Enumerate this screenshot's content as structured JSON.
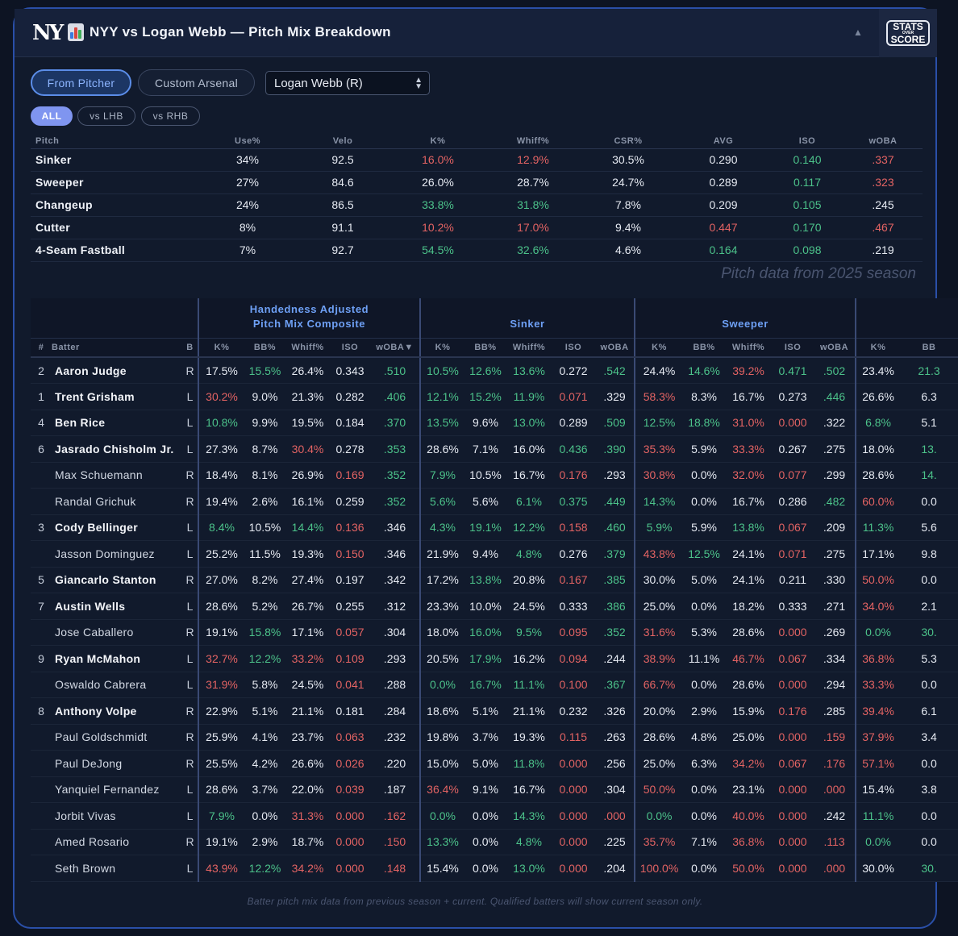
{
  "header": {
    "title": "NYY vs Logan Webb — Pitch Mix Breakdown",
    "team_logo_text": "NY",
    "brand": {
      "line1": "STATS",
      "line2": "OVER",
      "line3": "SCORE"
    },
    "collapse_icon": "chevron-up-icon"
  },
  "controls": {
    "from_pitcher": "From Pitcher",
    "custom_arsenal": "Custom Arsenal",
    "pitcher_select": "Logan Webb (R)",
    "filters": {
      "all": "ALL",
      "lhb": "vs LHB",
      "rhb": "vs RHB"
    }
  },
  "colors": {
    "accent": "#5b8de8",
    "good": "#4cc28a",
    "bad": "#e36363",
    "group_header": "#6ea0f5"
  },
  "pitch_table": {
    "columns": [
      "Pitch",
      "Use%",
      "Velo",
      "K%",
      "Whiff%",
      "CSR%",
      "AVG",
      "ISO",
      "wOBA"
    ],
    "rows": [
      {
        "cells": [
          "Sinker",
          "34%",
          "92.5",
          "16.0%",
          "12.9%",
          "30.5%",
          "0.290",
          "0.140",
          ".337"
        ],
        "tone": [
          "",
          "",
          "",
          "r",
          "r",
          "",
          "",
          "g",
          "r"
        ]
      },
      {
        "cells": [
          "Sweeper",
          "27%",
          "84.6",
          "26.0%",
          "28.7%",
          "24.7%",
          "0.289",
          "0.117",
          ".323"
        ],
        "tone": [
          "",
          "",
          "",
          "",
          "",
          "",
          "",
          "g",
          "r"
        ]
      },
      {
        "cells": [
          "Changeup",
          "24%",
          "86.5",
          "33.8%",
          "31.8%",
          "7.8%",
          "0.209",
          "0.105",
          ".245"
        ],
        "tone": [
          "",
          "",
          "",
          "g",
          "g",
          "",
          "",
          "g",
          ""
        ]
      },
      {
        "cells": [
          "Cutter",
          "8%",
          "91.1",
          "10.2%",
          "17.0%",
          "9.4%",
          "0.447",
          "0.170",
          ".467"
        ],
        "tone": [
          "",
          "",
          "",
          "r",
          "r",
          "",
          "r",
          "g",
          "r"
        ]
      },
      {
        "cells": [
          "4-Seam Fastball",
          "7%",
          "92.7",
          "54.5%",
          "32.6%",
          "4.6%",
          "0.164",
          "0.098",
          ".219"
        ],
        "tone": [
          "",
          "",
          "",
          "g",
          "g",
          "",
          "g",
          "g",
          ""
        ]
      }
    ],
    "note": "Pitch data from 2025 season"
  },
  "batter_table": {
    "groups": [
      {
        "label_line1": "Handedness Adjusted",
        "label_line2": "Pitch Mix Composite"
      },
      {
        "label_line1": "",
        "label_line2": "Sinker"
      },
      {
        "label_line1": "",
        "label_line2": "Sweeper"
      },
      {
        "label_line1": "",
        "label_line2": ""
      }
    ],
    "columns": [
      "#",
      "Batter",
      "B",
      "K%",
      "BB%",
      "Whiff%",
      "ISO",
      "wOBA▼",
      "K%",
      "BB%",
      "Whiff%",
      "ISO",
      "wOBA",
      "K%",
      "BB%",
      "Whiff%",
      "ISO",
      "wOBA",
      "K%",
      "BB"
    ],
    "rows": [
      {
        "order": "2",
        "name": "Aaron Judge",
        "bold": true,
        "hand": "R",
        "vals": [
          "17.5%",
          "15.5%",
          "26.4%",
          "0.343",
          ".510",
          "10.5%",
          "12.6%",
          "13.6%",
          "0.272",
          ".542",
          "24.4%",
          "14.6%",
          "39.2%",
          "0.471",
          ".502",
          "23.4%",
          "21.3"
        ],
        "tone": [
          "",
          "g",
          "",
          "",
          "g",
          "g",
          "g",
          "g",
          "",
          "g",
          "",
          "g",
          "r",
          "g",
          "g",
          "",
          "g"
        ]
      },
      {
        "order": "1",
        "name": "Trent Grisham",
        "bold": true,
        "hand": "L",
        "vals": [
          "30.2%",
          "9.0%",
          "21.3%",
          "0.282",
          ".406",
          "12.1%",
          "15.2%",
          "11.9%",
          "0.071",
          ".329",
          "58.3%",
          "8.3%",
          "16.7%",
          "0.273",
          ".446",
          "26.6%",
          "6.3"
        ],
        "tone": [
          "r",
          "",
          "",
          "",
          "g",
          "g",
          "g",
          "g",
          "r",
          "",
          "r",
          "",
          "",
          "",
          "g",
          "",
          ""
        ]
      },
      {
        "order": "4",
        "name": "Ben Rice",
        "bold": true,
        "hand": "L",
        "vals": [
          "10.8%",
          "9.9%",
          "19.5%",
          "0.184",
          ".370",
          "13.5%",
          "9.6%",
          "13.0%",
          "0.289",
          ".509",
          "12.5%",
          "18.8%",
          "31.0%",
          "0.000",
          ".322",
          "6.8%",
          "5.1"
        ],
        "tone": [
          "g",
          "",
          "",
          "",
          "g",
          "g",
          "",
          "g",
          "",
          "g",
          "g",
          "g",
          "r",
          "r",
          "",
          "g",
          ""
        ]
      },
      {
        "order": "6",
        "name": "Jasrado Chisholm Jr.",
        "bold": true,
        "hand": "L",
        "vals": [
          "27.3%",
          "8.7%",
          "30.4%",
          "0.278",
          ".353",
          "28.6%",
          "7.1%",
          "16.0%",
          "0.436",
          ".390",
          "35.3%",
          "5.9%",
          "33.3%",
          "0.267",
          ".275",
          "18.0%",
          "13."
        ],
        "tone": [
          "",
          "",
          "r",
          "",
          "g",
          "",
          "",
          "",
          "g",
          "g",
          "r",
          "",
          "r",
          "",
          "",
          "",
          "g"
        ]
      },
      {
        "order": "",
        "name": "Max Schuemann",
        "bold": false,
        "hand": "R",
        "vals": [
          "18.4%",
          "8.1%",
          "26.9%",
          "0.169",
          ".352",
          "7.9%",
          "10.5%",
          "16.7%",
          "0.176",
          ".293",
          "30.8%",
          "0.0%",
          "32.0%",
          "0.077",
          ".299",
          "28.6%",
          "14."
        ],
        "tone": [
          "",
          "",
          "",
          "r",
          "g",
          "g",
          "",
          "",
          "r",
          "",
          "r",
          "",
          "r",
          "r",
          "",
          "",
          "g"
        ]
      },
      {
        "order": "",
        "name": "Randal Grichuk",
        "bold": false,
        "hand": "R",
        "vals": [
          "19.4%",
          "2.6%",
          "16.1%",
          "0.259",
          ".352",
          "5.6%",
          "5.6%",
          "6.1%",
          "0.375",
          ".449",
          "14.3%",
          "0.0%",
          "16.7%",
          "0.286",
          ".482",
          "60.0%",
          "0.0"
        ],
        "tone": [
          "",
          "",
          "",
          "",
          "g",
          "g",
          "",
          "g",
          "g",
          "g",
          "g",
          "",
          "",
          "",
          "g",
          "r",
          ""
        ]
      },
      {
        "order": "3",
        "name": "Cody Bellinger",
        "bold": true,
        "hand": "L",
        "vals": [
          "8.4%",
          "10.5%",
          "14.4%",
          "0.136",
          ".346",
          "4.3%",
          "19.1%",
          "12.2%",
          "0.158",
          ".460",
          "5.9%",
          "5.9%",
          "13.8%",
          "0.067",
          ".209",
          "11.3%",
          "5.6"
        ],
        "tone": [
          "g",
          "",
          "g",
          "r",
          "",
          "g",
          "g",
          "g",
          "r",
          "g",
          "g",
          "",
          "g",
          "r",
          "",
          "g",
          ""
        ]
      },
      {
        "order": "",
        "name": "Jasson Dominguez",
        "bold": false,
        "hand": "L",
        "vals": [
          "25.2%",
          "11.5%",
          "19.3%",
          "0.150",
          ".346",
          "21.9%",
          "9.4%",
          "4.8%",
          "0.276",
          ".379",
          "43.8%",
          "12.5%",
          "24.1%",
          "0.071",
          ".275",
          "17.1%",
          "9.8"
        ],
        "tone": [
          "",
          "",
          "",
          "r",
          "",
          "",
          "",
          "g",
          "",
          "g",
          "r",
          "g",
          "",
          "r",
          "",
          "",
          ""
        ]
      },
      {
        "order": "5",
        "name": "Giancarlo Stanton",
        "bold": true,
        "hand": "R",
        "vals": [
          "27.0%",
          "8.2%",
          "27.4%",
          "0.197",
          ".342",
          "17.2%",
          "13.8%",
          "20.8%",
          "0.167",
          ".385",
          "30.0%",
          "5.0%",
          "24.1%",
          "0.211",
          ".330",
          "50.0%",
          "0.0"
        ],
        "tone": [
          "",
          "",
          "",
          "",
          "",
          "",
          "g",
          "",
          "r",
          "g",
          "",
          "",
          "",
          "",
          "",
          "r",
          ""
        ]
      },
      {
        "order": "7",
        "name": "Austin Wells",
        "bold": true,
        "hand": "L",
        "vals": [
          "28.6%",
          "5.2%",
          "26.7%",
          "0.255",
          ".312",
          "23.3%",
          "10.0%",
          "24.5%",
          "0.333",
          ".386",
          "25.0%",
          "0.0%",
          "18.2%",
          "0.333",
          ".271",
          "34.0%",
          "2.1"
        ],
        "tone": [
          "",
          "",
          "",
          "",
          "",
          "",
          "",
          "",
          "",
          "g",
          "",
          "",
          "",
          "",
          "",
          "r",
          ""
        ]
      },
      {
        "order": "",
        "name": "Jose Caballero",
        "bold": false,
        "hand": "R",
        "vals": [
          "19.1%",
          "15.8%",
          "17.1%",
          "0.057",
          ".304",
          "18.0%",
          "16.0%",
          "9.5%",
          "0.095",
          ".352",
          "31.6%",
          "5.3%",
          "28.6%",
          "0.000",
          ".269",
          "0.0%",
          "30."
        ],
        "tone": [
          "",
          "g",
          "",
          "r",
          "",
          "",
          "g",
          "g",
          "r",
          "g",
          "r",
          "",
          "",
          "r",
          "",
          "g",
          "g"
        ]
      },
      {
        "order": "9",
        "name": "Ryan McMahon",
        "bold": true,
        "hand": "L",
        "vals": [
          "32.7%",
          "12.2%",
          "33.2%",
          "0.109",
          ".293",
          "20.5%",
          "17.9%",
          "16.2%",
          "0.094",
          ".244",
          "38.9%",
          "11.1%",
          "46.7%",
          "0.067",
          ".334",
          "36.8%",
          "5.3"
        ],
        "tone": [
          "r",
          "g",
          "r",
          "r",
          "",
          "",
          "g",
          "",
          "r",
          "",
          "r",
          "",
          "r",
          "r",
          "",
          "r",
          ""
        ]
      },
      {
        "order": "",
        "name": "Oswaldo Cabrera",
        "bold": false,
        "hand": "L",
        "vals": [
          "31.9%",
          "5.8%",
          "24.5%",
          "0.041",
          ".288",
          "0.0%",
          "16.7%",
          "11.1%",
          "0.100",
          ".367",
          "66.7%",
          "0.0%",
          "28.6%",
          "0.000",
          ".294",
          "33.3%",
          "0.0"
        ],
        "tone": [
          "r",
          "",
          "",
          "r",
          "",
          "g",
          "g",
          "g",
          "r",
          "g",
          "r",
          "",
          "",
          "r",
          "",
          "r",
          ""
        ]
      },
      {
        "order": "8",
        "name": "Anthony Volpe",
        "bold": true,
        "hand": "R",
        "vals": [
          "22.9%",
          "5.1%",
          "21.1%",
          "0.181",
          ".284",
          "18.6%",
          "5.1%",
          "21.1%",
          "0.232",
          ".326",
          "20.0%",
          "2.9%",
          "15.9%",
          "0.176",
          ".285",
          "39.4%",
          "6.1"
        ],
        "tone": [
          "",
          "",
          "",
          "",
          "",
          "",
          "",
          "",
          "",
          "",
          "",
          "",
          "",
          "r",
          "",
          "r",
          ""
        ]
      },
      {
        "order": "",
        "name": "Paul Goldschmidt",
        "bold": false,
        "hand": "R",
        "vals": [
          "25.9%",
          "4.1%",
          "23.7%",
          "0.063",
          ".232",
          "19.8%",
          "3.7%",
          "19.3%",
          "0.115",
          ".263",
          "28.6%",
          "4.8%",
          "25.0%",
          "0.000",
          ".159",
          "37.9%",
          "3.4"
        ],
        "tone": [
          "",
          "",
          "",
          "r",
          "",
          "",
          "",
          "",
          "r",
          "",
          "",
          "",
          "",
          "r",
          "r",
          "r",
          ""
        ]
      },
      {
        "order": "",
        "name": "Paul DeJong",
        "bold": false,
        "hand": "R",
        "vals": [
          "25.5%",
          "4.2%",
          "26.6%",
          "0.026",
          ".220",
          "15.0%",
          "5.0%",
          "11.8%",
          "0.000",
          ".256",
          "25.0%",
          "6.3%",
          "34.2%",
          "0.067",
          ".176",
          "57.1%",
          "0.0"
        ],
        "tone": [
          "",
          "",
          "",
          "r",
          "",
          "",
          "",
          "g",
          "r",
          "",
          "",
          "",
          "r",
          "r",
          "r",
          "r",
          ""
        ]
      },
      {
        "order": "",
        "name": "Yanquiel Fernandez",
        "bold": false,
        "hand": "L",
        "vals": [
          "28.6%",
          "3.7%",
          "22.0%",
          "0.039",
          ".187",
          "36.4%",
          "9.1%",
          "16.7%",
          "0.000",
          ".304",
          "50.0%",
          "0.0%",
          "23.1%",
          "0.000",
          ".000",
          "15.4%",
          "3.8"
        ],
        "tone": [
          "",
          "",
          "",
          "r",
          "",
          "r",
          "",
          "",
          "r",
          "",
          "r",
          "",
          "",
          "r",
          "r",
          "",
          ""
        ]
      },
      {
        "order": "",
        "name": "Jorbit Vivas",
        "bold": false,
        "hand": "L",
        "vals": [
          "7.9%",
          "0.0%",
          "31.3%",
          "0.000",
          ".162",
          "0.0%",
          "0.0%",
          "14.3%",
          "0.000",
          ".000",
          "0.0%",
          "0.0%",
          "40.0%",
          "0.000",
          ".242",
          "11.1%",
          "0.0"
        ],
        "tone": [
          "g",
          "",
          "r",
          "r",
          "r",
          "g",
          "",
          "g",
          "r",
          "r",
          "g",
          "",
          "r",
          "r",
          "",
          "g",
          ""
        ]
      },
      {
        "order": "",
        "name": "Amed Rosario",
        "bold": false,
        "hand": "R",
        "vals": [
          "19.1%",
          "2.9%",
          "18.7%",
          "0.000",
          ".150",
          "13.3%",
          "0.0%",
          "4.8%",
          "0.000",
          ".225",
          "35.7%",
          "7.1%",
          "36.8%",
          "0.000",
          ".113",
          "0.0%",
          "0.0"
        ],
        "tone": [
          "",
          "",
          "",
          "r",
          "r",
          "g",
          "",
          "g",
          "r",
          "",
          "r",
          "",
          "r",
          "r",
          "r",
          "g",
          ""
        ]
      },
      {
        "order": "",
        "name": "Seth Brown",
        "bold": false,
        "hand": "L",
        "vals": [
          "43.9%",
          "12.2%",
          "34.2%",
          "0.000",
          ".148",
          "15.4%",
          "0.0%",
          "13.0%",
          "0.000",
          ".204",
          "100.0%",
          "0.0%",
          "50.0%",
          "0.000",
          ".000",
          "30.0%",
          "30."
        ],
        "tone": [
          "r",
          "g",
          "r",
          "r",
          "r",
          "",
          "",
          "g",
          "r",
          "",
          "r",
          "",
          "r",
          "r",
          "r",
          "",
          "g"
        ]
      }
    ],
    "footer": "Batter pitch mix data from previous season + current. Qualified batters will show current season only."
  }
}
